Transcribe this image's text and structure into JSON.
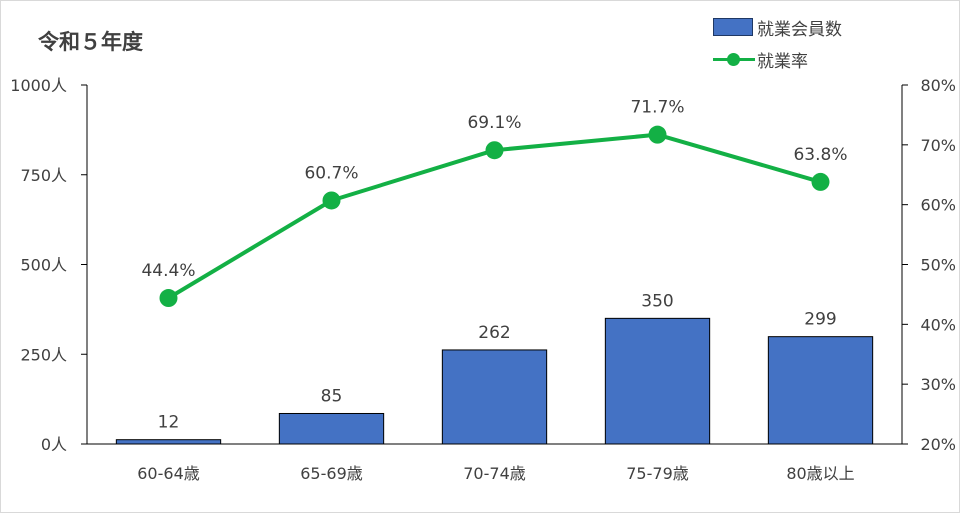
{
  "chart_data": {
    "type": "bar+line",
    "title": "令和５年度",
    "categories": [
      "60-64歳",
      "65-69歳",
      "70-74歳",
      "75-79歳",
      "80歳以上"
    ],
    "series": [
      {
        "name": "就業会員数",
        "type": "bar",
        "axis": "left",
        "values": [
          12,
          85,
          262,
          350,
          299
        ],
        "value_labels": [
          "12",
          "85",
          "262",
          "350",
          "299"
        ],
        "color": "#4472c4"
      },
      {
        "name": "就業率",
        "type": "line",
        "axis": "right",
        "values": [
          44.4,
          60.7,
          69.1,
          71.7,
          63.8
        ],
        "value_labels": [
          "44.4%",
          "60.7%",
          "69.1%",
          "71.7%",
          "63.8%"
        ],
        "color": "#13b045"
      }
    ],
    "y_left": {
      "ylim": [
        0,
        1000
      ],
      "ticks": [
        0,
        250,
        500,
        750,
        1000
      ],
      "tick_labels": [
        "0人",
        "250人",
        "500人",
        "750人",
        "1000人"
      ]
    },
    "y_right": {
      "ylim": [
        20,
        80
      ],
      "ticks": [
        20,
        30,
        40,
        50,
        60,
        70,
        80
      ],
      "tick_labels": [
        "20%",
        "30%",
        "40%",
        "50%",
        "60%",
        "70%",
        "80%"
      ]
    },
    "grid": false,
    "legend_position": "top-right"
  }
}
